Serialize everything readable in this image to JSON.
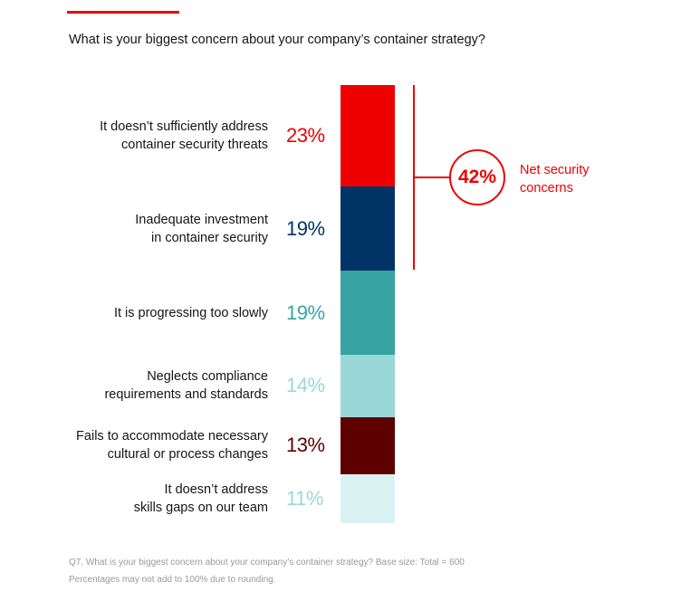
{
  "chart_data": {
    "type": "bar",
    "stacked": true,
    "title": "What is your biggest concern about your company’s container strategy?",
    "categories": [
      "It doesn’t sufficiently address container security threats",
      "Inadequate investment in container security",
      "It is progressing too slowly",
      "Neglects compliance requirements and standards",
      "Fails to accommodate necessary cultural or process changes",
      "It doesn’t address skills gaps on our team"
    ],
    "label_lines": [
      [
        "It doesn’t sufficiently address",
        "container security threats"
      ],
      [
        "Inadequate investment",
        "in container security"
      ],
      [
        "It is progressing too slowly"
      ],
      [
        "Neglects compliance",
        "requirements and standards"
      ],
      [
        "Fails to accommodate necessary",
        "cultural or process changes"
      ],
      [
        "It doesn’t address",
        "skills gaps on our team"
      ]
    ],
    "values": [
      23,
      19,
      19,
      14,
      13,
      11
    ],
    "value_labels": [
      "23%",
      "19%",
      "19%",
      "14%",
      "13%",
      "11%"
    ],
    "colors": [
      "#ee0000",
      "#003366",
      "#37a3a3",
      "#9ad8d8",
      "#5f0000",
      "#daf2f2"
    ],
    "label_colors": [
      "#ee0000",
      "#003366",
      "#37a3a3",
      "#9ad8d8",
      "#5f0000",
      "#9ad8d8"
    ],
    "annotation": {
      "value": "42%",
      "text_lines": [
        "Net security",
        "concerns"
      ],
      "spans": [
        0,
        1
      ],
      "color": "#ee0000"
    }
  },
  "footnotes": [
    "Q7. What is your biggest concern about your company’s container strategy? Base size: Total = 600",
    "Percentages may not add to 100% due to rounding."
  ]
}
